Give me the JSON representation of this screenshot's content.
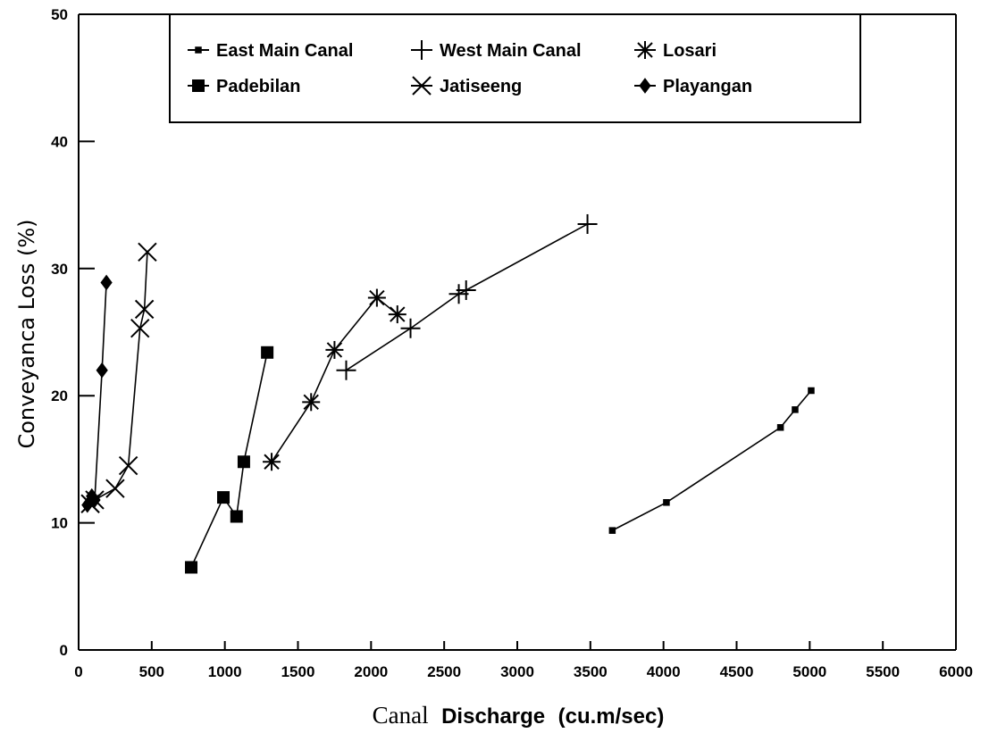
{
  "chart_data": {
    "type": "line",
    "xlabel_parts": [
      "Canal",
      "Discharge",
      "(cu.m/sec)"
    ],
    "ylabel": "Conveyanca Loss (%)",
    "xlim": [
      0,
      6000
    ],
    "ylim": [
      0,
      50
    ],
    "x_ticks": [
      "0",
      "500",
      "1000",
      "1500",
      "2000",
      "2500",
      "3000",
      "3500",
      "4000",
      "4500",
      "5000",
      "5500",
      "6000"
    ],
    "y_ticks": [
      "0",
      "10",
      "20",
      "30",
      "40",
      "50"
    ],
    "legend_position": "top",
    "grid": false,
    "series": [
      {
        "name": "East Main Canal",
        "marker": "small-square",
        "x": [
          3650,
          4020,
          4800,
          4900,
          5010
        ],
        "y": [
          9.4,
          11.6,
          17.5,
          18.9,
          20.4
        ]
      },
      {
        "name": "West Main Canal",
        "marker": "plus",
        "x": [
          1830,
          2270,
          2600,
          2650,
          3480
        ],
        "y": [
          22.0,
          25.3,
          28.0,
          28.3,
          33.5
        ]
      },
      {
        "name": "Losari",
        "marker": "asterisk",
        "x": [
          1320,
          1590,
          1750,
          2040,
          2180
        ],
        "y": [
          14.8,
          19.5,
          23.6,
          27.7,
          26.4
        ]
      },
      {
        "name": "Padebilan",
        "marker": "square",
        "x": [
          770,
          990,
          1080,
          1130,
          1290
        ],
        "y": [
          6.5,
          12.0,
          10.5,
          14.8,
          23.4
        ]
      },
      {
        "name": "Jatiseeng",
        "marker": "x-cross",
        "x": [
          80,
          110,
          250,
          340,
          420,
          450,
          470
        ],
        "y": [
          11.5,
          11.8,
          12.7,
          14.5,
          25.3,
          26.8,
          31.3
        ]
      },
      {
        "name": "Playangan",
        "marker": "diamond",
        "x": [
          60,
          90,
          110,
          160,
          190
        ],
        "y": [
          11.4,
          12.1,
          11.8,
          22.0,
          28.9
        ]
      }
    ]
  }
}
